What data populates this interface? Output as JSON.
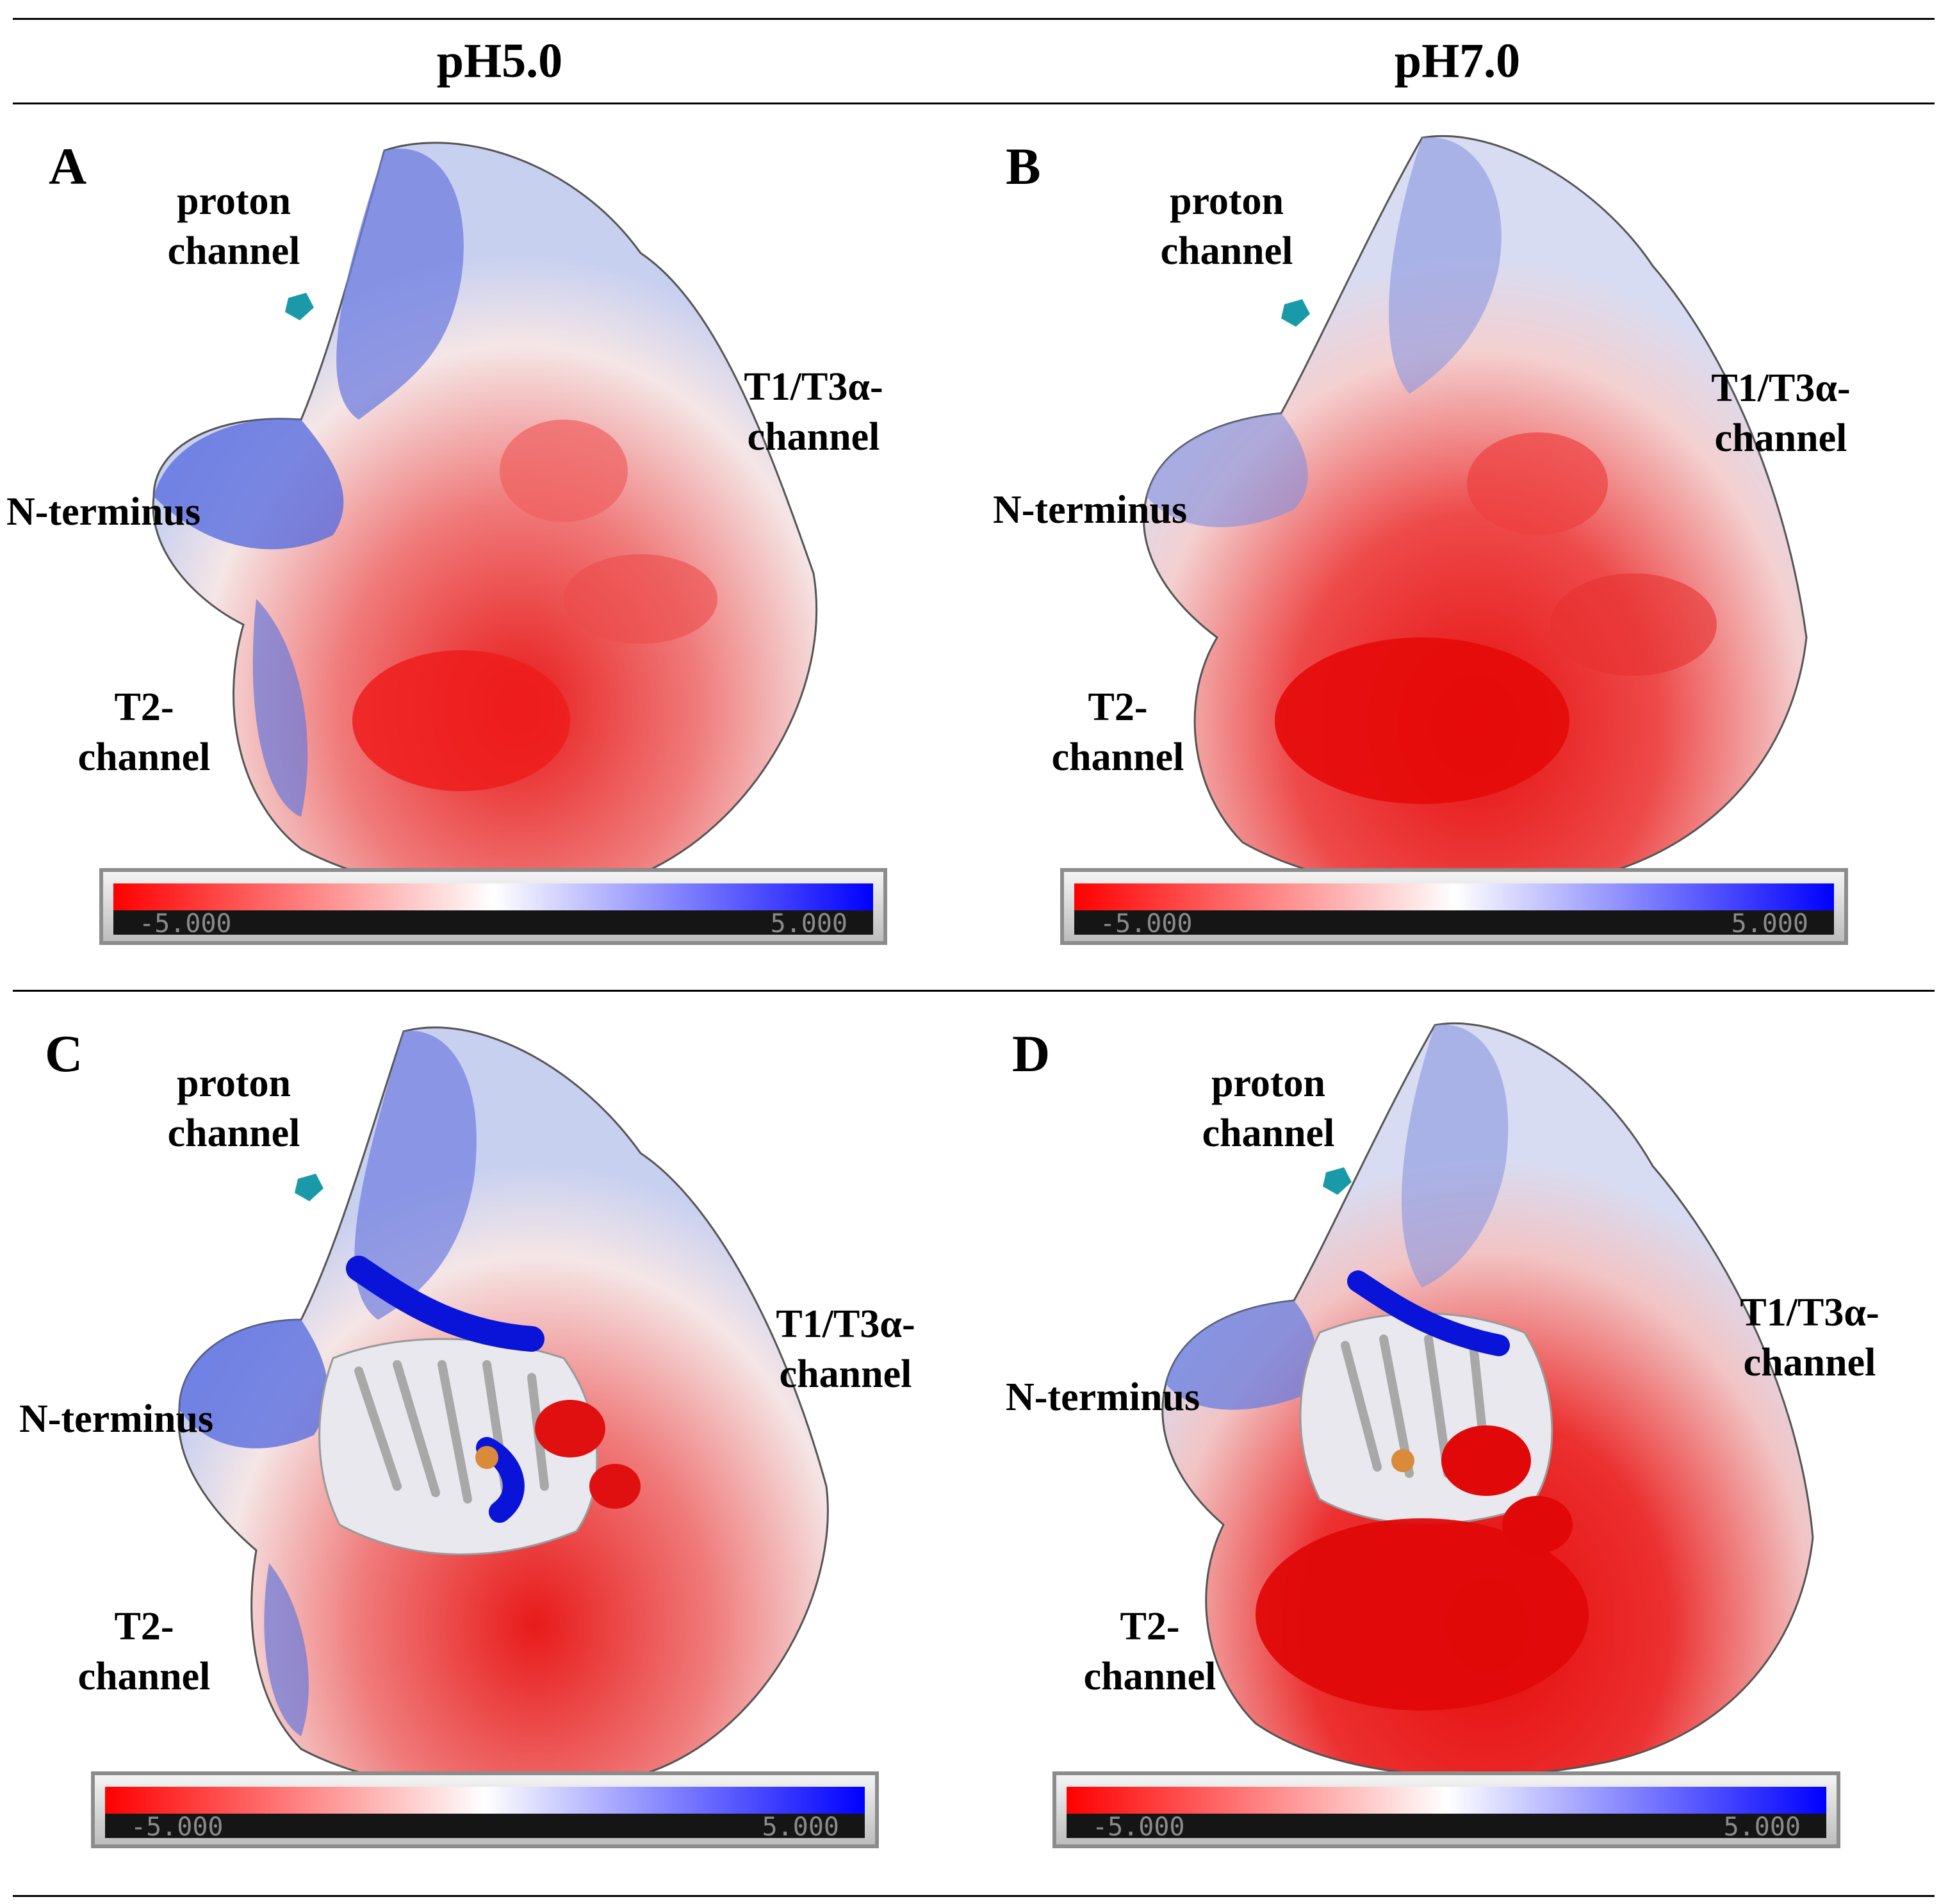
{
  "columns": {
    "left": "pH5.0",
    "right": "pH7.0"
  },
  "panels": [
    {
      "label": "A",
      "proton": [
        "proton",
        "channel"
      ],
      "t1t3": [
        "T1/T3α-",
        "channel"
      ],
      "nterm": "N-terminus",
      "t2": [
        "T2-",
        "channel"
      ],
      "scale_min": "-5.000",
      "scale_max": "5.000"
    },
    {
      "label": "B",
      "proton": [
        "proton",
        "channel"
      ],
      "t1t3": [
        "T1/T3α-",
        "channel"
      ],
      "nterm": "N-terminus",
      "t2": [
        "T2-",
        "channel"
      ],
      "scale_min": "-5.000",
      "scale_max": "5.000"
    },
    {
      "label": "C",
      "proton": [
        "proton",
        "channel"
      ],
      "t1t3": [
        "T1/T3α-",
        "channel"
      ],
      "nterm": "N-terminus",
      "t2": [
        "T2-",
        "channel"
      ],
      "scale_min": "-5.000",
      "scale_max": "5.000"
    },
    {
      "label": "D",
      "proton": [
        "proton",
        "channel"
      ],
      "t1t3": [
        "T1/T3α-",
        "channel"
      ],
      "nterm": "N-terminus",
      "t2": [
        "T2-",
        "channel"
      ],
      "scale_min": "-5.000",
      "scale_max": "5.000"
    }
  ],
  "colors": {
    "negative": "#ff0000",
    "neutral": "#ffffff",
    "positive": "#0000ff",
    "marker": "#1a9aa8"
  }
}
